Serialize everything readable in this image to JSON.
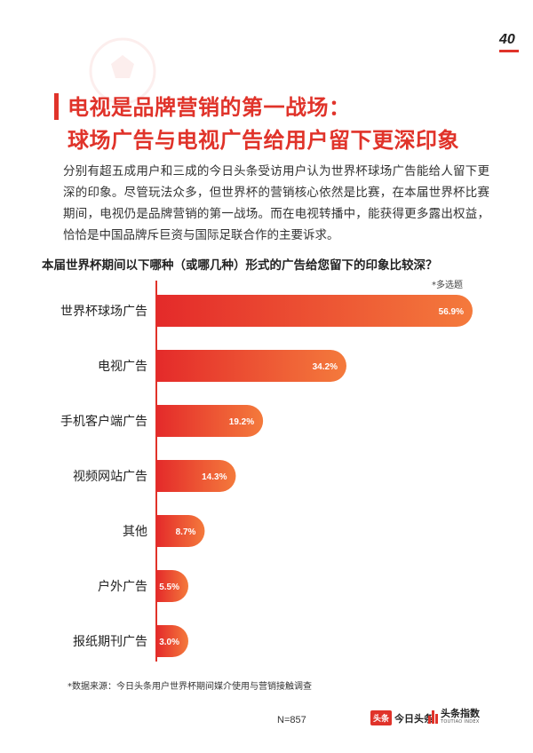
{
  "page": {
    "number": "40",
    "title_line1": "电视是品牌营销的第一战场：",
    "title_line2": "球场广告与电视广告给用户留下更深印象",
    "intro": "分别有超五成用户和三成的今日头条受访用户认为世界杯球场广告能给人留下更深的印象。尽管玩法众多，但世界杯的营销核心依然是比赛，在本届世界杯比赛期间，电视仍是品牌营销的第一战场。而在电视转播中，能获得更多露出权益，恰恰是中国品牌斥巨资与国际足联合作的主要诉求。",
    "question": "本届世界杯期间以下哪种（或哪几种）形式的广告给您留下的印象比较深？",
    "note": "*多选题",
    "source": "*数据来源：今日头条用户世界杯期间媒介使用与营销接触调查",
    "sample": "N=857",
    "logo1_badge": "头条",
    "logo1_text": "今日头条",
    "logo2_text": "头条指数",
    "logo2_sub": "TOUTIAO INDEX"
  },
  "colors": {
    "accent": "#e0332a",
    "bar_start": "#e42a2a",
    "bar_end": "#f47a3c"
  },
  "chart_data": {
    "type": "bar",
    "orientation": "horizontal",
    "categories": [
      "世界杯球场广告",
      "电视广告",
      "手机客户端广告",
      "视频网站广告",
      "其他",
      "户外广告",
      "报纸期刊广告"
    ],
    "values": [
      56.9,
      34.2,
      19.2,
      14.3,
      8.7,
      5.5,
      3.0
    ],
    "value_labels": [
      "56.9%",
      "34.2%",
      "19.2%",
      "14.3%",
      "8.7%",
      "5.5%",
      "3.0%"
    ],
    "unit": "%",
    "xlim": [
      0,
      56.9
    ],
    "grid": false,
    "legend": "none"
  }
}
